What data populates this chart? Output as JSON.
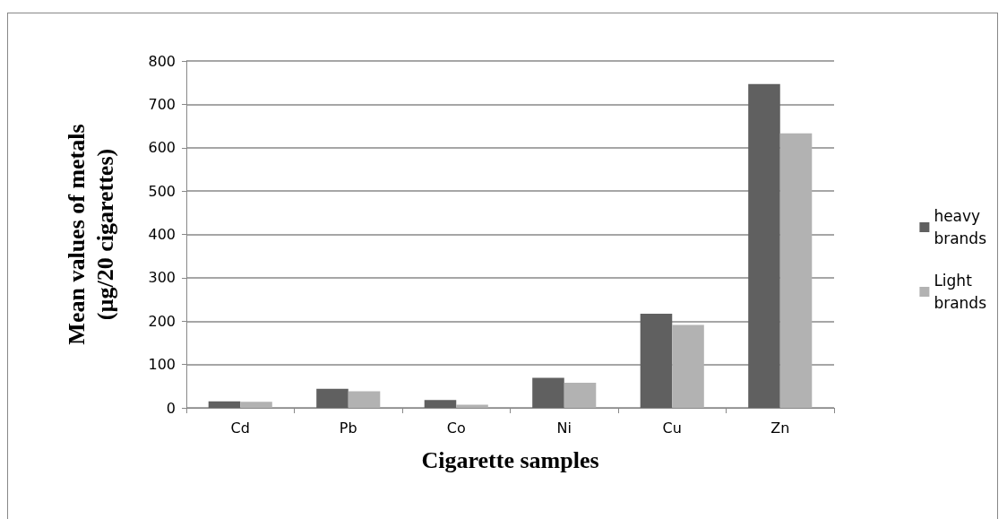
{
  "chart_data": {
    "type": "bar",
    "xlabel": "Cigarette samples",
    "ylabel": "Mean values of metals (µg/20 cigarettes)",
    "categories": [
      "Cd",
      "Pb",
      "Co",
      "Ni",
      "Cu",
      "Zn"
    ],
    "series": [
      {
        "name": "heavy brands",
        "color": "#606060",
        "values": [
          15,
          44,
          18,
          69,
          217,
          747
        ]
      },
      {
        "name": "Light brands",
        "color": "#b2b2b2",
        "values": [
          14,
          38,
          7,
          58,
          191,
          633
        ]
      }
    ],
    "ylim": [
      0,
      800
    ],
    "yticks": [
      0,
      100,
      200,
      300,
      400,
      500,
      600,
      700,
      800
    ],
    "grid": "y",
    "legend": "right"
  }
}
